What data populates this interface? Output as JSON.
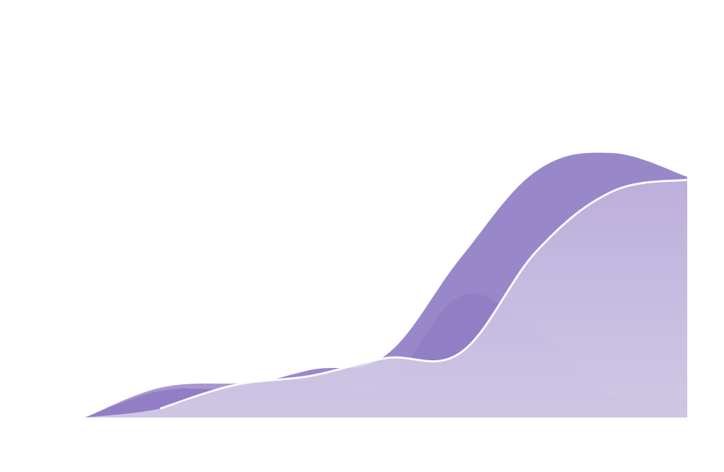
{
  "chart_data": {
    "type": "area",
    "x": [
      0,
      1,
      2,
      3,
      4,
      5,
      6,
      7,
      8
    ],
    "xlim": [
      0,
      8
    ],
    "ylim": [
      0,
      10
    ],
    "grid": false,
    "series": [
      {
        "values": [
          0,
          1.0,
          1.15,
          1.2,
          1.1,
          4.1,
          2.9,
          0.7,
          0.6
        ],
        "color": "#9a86c8",
        "opacity": 0.85
      },
      {
        "values": [
          0,
          0.9,
          1.0,
          1.6,
          2.1,
          5.4,
          8.3,
          8.9,
          8.1
        ],
        "color": "#8e7bc3",
        "opacity": 0.9
      },
      {
        "values": [
          0,
          0.3,
          1.1,
          1.4,
          2.0,
          2.2,
          5.6,
          7.6,
          8.0
        ],
        "color": "#c8bde2",
        "opacity": 0.82,
        "edge": "#ffffff"
      }
    ]
  }
}
